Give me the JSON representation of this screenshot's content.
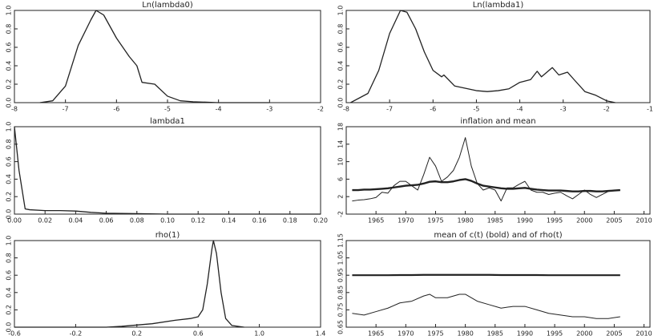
{
  "chart_data": [
    {
      "type": "line",
      "title": "Ln(lambda0)",
      "x": [
        -7.5,
        -7.25,
        -7,
        -6.75,
        -6.5,
        -6.4,
        -6.25,
        -6,
        -5.75,
        -5.6,
        -5.5,
        -5.25,
        -5,
        -4.75,
        -4.5,
        -4,
        -3.5,
        -3
      ],
      "series": [
        {
          "color": "#222222",
          "width": 1.3,
          "values": [
            0,
            0.02,
            0.18,
            0.62,
            0.9,
            1.0,
            0.95,
            0.7,
            0.5,
            0.4,
            0.22,
            0.2,
            0.07,
            0.02,
            0.01,
            0,
            0,
            0
          ]
        }
      ],
      "xlim": [
        -8,
        -2
      ],
      "xticks": [
        -8,
        -7,
        -6,
        -5,
        -4,
        -3,
        -2
      ],
      "ylim": [
        0,
        1
      ],
      "yticks": [
        {
          "value": 0,
          "label": "0.0"
        },
        0.2,
        0.4,
        0.6,
        0.8,
        {
          "value": 1,
          "label": "1.0"
        }
      ]
    },
    {
      "type": "line",
      "title": "Ln(lambda1)",
      "x": [
        -7.9,
        -7.5,
        -7.25,
        -7,
        -6.75,
        -6.6,
        -6.4,
        -6.2,
        -6,
        -5.8,
        -5.75,
        -5.5,
        -5,
        -4.75,
        -4.5,
        -4.25,
        -4,
        -3.75,
        -3.6,
        -3.5,
        -3.25,
        -3.1,
        -2.9,
        -2.75,
        -2.5,
        -2.25,
        -2,
        -1.8
      ],
      "series": [
        {
          "color": "#222222",
          "width": 1.3,
          "values": [
            0,
            0.1,
            0.35,
            0.75,
            1.0,
            0.98,
            0.8,
            0.55,
            0.35,
            0.28,
            0.3,
            0.18,
            0.13,
            0.12,
            0.13,
            0.15,
            0.22,
            0.25,
            0.34,
            0.28,
            0.38,
            0.3,
            0.33,
            0.25,
            0.12,
            0.08,
            0.02,
            0
          ]
        }
      ],
      "xlim": [
        -8,
        -1
      ],
      "xticks": [
        -8,
        -7,
        -6,
        -5,
        -4,
        -3,
        -2,
        -1
      ],
      "ylim": [
        0,
        1
      ],
      "yticks": [
        {
          "value": 0,
          "label": "0.0"
        },
        0.2,
        0.4,
        0.6,
        0.8,
        {
          "value": 1,
          "label": "1.0"
        }
      ]
    },
    {
      "type": "line",
      "title": "lambda1",
      "x": [
        0,
        0.003,
        0.007,
        0.01,
        0.02,
        0.03,
        0.04,
        0.05,
        0.06,
        0.08,
        0.1,
        0.2
      ],
      "series": [
        {
          "color": "#222222",
          "width": 1.3,
          "values": [
            1.0,
            0.5,
            0.06,
            0.05,
            0.04,
            0.04,
            0.035,
            0.02,
            0.01,
            0.005,
            0,
            0
          ]
        }
      ],
      "xlim": [
        0,
        0.2
      ],
      "xticks": [
        {
          "value": 0,
          "label": "0.00"
        },
        {
          "value": 0.02,
          "label": "0.02"
        },
        {
          "value": 0.04,
          "label": "0.04"
        },
        {
          "value": 0.06,
          "label": "0.06"
        },
        {
          "value": 0.08,
          "label": "0.08"
        },
        {
          "value": 0.1,
          "label": "0.10"
        },
        {
          "value": 0.12,
          "label": "0.12"
        },
        {
          "value": 0.14,
          "label": "0.14"
        },
        {
          "value": 0.16,
          "label": "0.16"
        },
        {
          "value": 0.18,
          "label": "0.18"
        },
        {
          "value": 0.2,
          "label": "0.20"
        }
      ],
      "ylim": [
        0,
        1
      ],
      "yticks": [
        {
          "value": 0,
          "label": "0.0"
        },
        0.2,
        0.4,
        0.6,
        0.8,
        {
          "value": 1,
          "label": "1.0"
        }
      ]
    },
    {
      "type": "line",
      "title": "inflation and mean",
      "x": [
        1961,
        1962,
        1963,
        1964,
        1965,
        1966,
        1967,
        1968,
        1969,
        1970,
        1971,
        1972,
        1973,
        1974,
        1975,
        1976,
        1977,
        1978,
        1979,
        1980,
        1981,
        1982,
        1983,
        1984,
        1985,
        1986,
        1987,
        1988,
        1989,
        1990,
        1991,
        1992,
        1993,
        1994,
        1995,
        1996,
        1997,
        1998,
        1999,
        2000,
        2001,
        2002,
        2003,
        2004,
        2005,
        2006
      ],
      "series": [
        {
          "color": "#222222",
          "width": 1,
          "values": [
            1,
            1.2,
            1.3,
            1.5,
            1.8,
            3,
            2.8,
            4.5,
            5.5,
            5.5,
            4.5,
            3.5,
            7,
            11,
            9,
            5.5,
            6.5,
            8,
            11,
            15.5,
            9,
            5,
            3.5,
            4,
            3.5,
            1,
            4,
            4,
            4.8,
            5.5,
            3.5,
            3,
            3,
            2.5,
            2.8,
            3,
            2.2,
            1.5,
            2.5,
            3.5,
            2.5,
            1.8,
            2.5,
            3.2,
            3.5,
            3.5
          ]
        },
        {
          "color": "#222222",
          "width": 2.4,
          "values": [
            3.5,
            3.5,
            3.6,
            3.6,
            3.7,
            3.8,
            3.9,
            4.1,
            4.3,
            4.5,
            4.6,
            4.7,
            5.0,
            5.4,
            5.5,
            5.3,
            5.3,
            5.5,
            5.8,
            6.0,
            5.6,
            5.0,
            4.5,
            4.3,
            4.1,
            3.9,
            3.8,
            3.8,
            3.9,
            4.0,
            3.8,
            3.6,
            3.5,
            3.4,
            3.4,
            3.4,
            3.3,
            3.2,
            3.2,
            3.3,
            3.3,
            3.2,
            3.2,
            3.3,
            3.4,
            3.5
          ]
        }
      ],
      "xlim": [
        1960,
        2011
      ],
      "xticks": [
        1965,
        1970,
        1975,
        1980,
        1985,
        1990,
        1995,
        2000,
        2005,
        2010
      ],
      "ylim": [
        -2,
        18
      ],
      "yticks": [
        -2,
        2,
        6,
        10,
        14,
        18
      ]
    },
    {
      "type": "line",
      "title": "rho(1)",
      "x": [
        -0.6,
        0,
        0.1,
        0.3,
        0.45,
        0.55,
        0.6,
        0.63,
        0.66,
        0.69,
        0.7,
        0.72,
        0.75,
        0.78,
        0.82,
        0.9
      ],
      "series": [
        {
          "color": "#222222",
          "width": 1.3,
          "values": [
            0,
            0,
            0.01,
            0.04,
            0.08,
            0.1,
            0.12,
            0.2,
            0.5,
            0.9,
            1.0,
            0.85,
            0.4,
            0.1,
            0.02,
            0
          ]
        }
      ],
      "xlim": [
        -0.6,
        1.4
      ],
      "xticks": [
        -0.6,
        -0.2,
        0.2,
        0.6,
        {
          "value": 1,
          "label": "1.0"
        },
        1.4
      ],
      "ylim": [
        0,
        1
      ],
      "yticks": [
        {
          "value": 0,
          "label": "0.0"
        },
        0.2,
        0.4,
        0.6,
        0.8,
        {
          "value": 1,
          "label": "1.0"
        }
      ]
    },
    {
      "type": "line",
      "title": "mean of c(t) (bold) and of rho(t)",
      "x": [
        1961,
        1963,
        1965,
        1967,
        1969,
        1971,
        1973,
        1974,
        1975,
        1977,
        1979,
        1980,
        1982,
        1984,
        1986,
        1988,
        1990,
        1992,
        1994,
        1996,
        1998,
        2000,
        2002,
        2004,
        2006
      ],
      "series": [
        {
          "color": "#222222",
          "width": 2.2,
          "values": [
            0.95,
            0.95,
            0.95,
            0.95,
            0.951,
            0.951,
            0.952,
            0.952,
            0.952,
            0.952,
            0.952,
            0.952,
            0.952,
            0.952,
            0.951,
            0.951,
            0.951,
            0.951,
            0.95,
            0.95,
            0.95,
            0.95,
            0.95,
            0.95,
            0.95
          ]
        },
        {
          "color": "#222222",
          "width": 1,
          "values": [
            0.73,
            0.72,
            0.74,
            0.76,
            0.79,
            0.8,
            0.83,
            0.84,
            0.82,
            0.82,
            0.84,
            0.84,
            0.8,
            0.78,
            0.76,
            0.77,
            0.77,
            0.75,
            0.73,
            0.72,
            0.71,
            0.71,
            0.7,
            0.7,
            0.71
          ]
        }
      ],
      "xlim": [
        1960,
        2011
      ],
      "xticks": [
        1965,
        1970,
        1975,
        1980,
        1985,
        1990,
        1995,
        2000,
        2005,
        2010
      ],
      "ylim": [
        0.65,
        1.15
      ],
      "yticks": [
        0.65,
        0.75,
        0.85,
        0.95,
        1.05,
        1.15
      ]
    }
  ]
}
